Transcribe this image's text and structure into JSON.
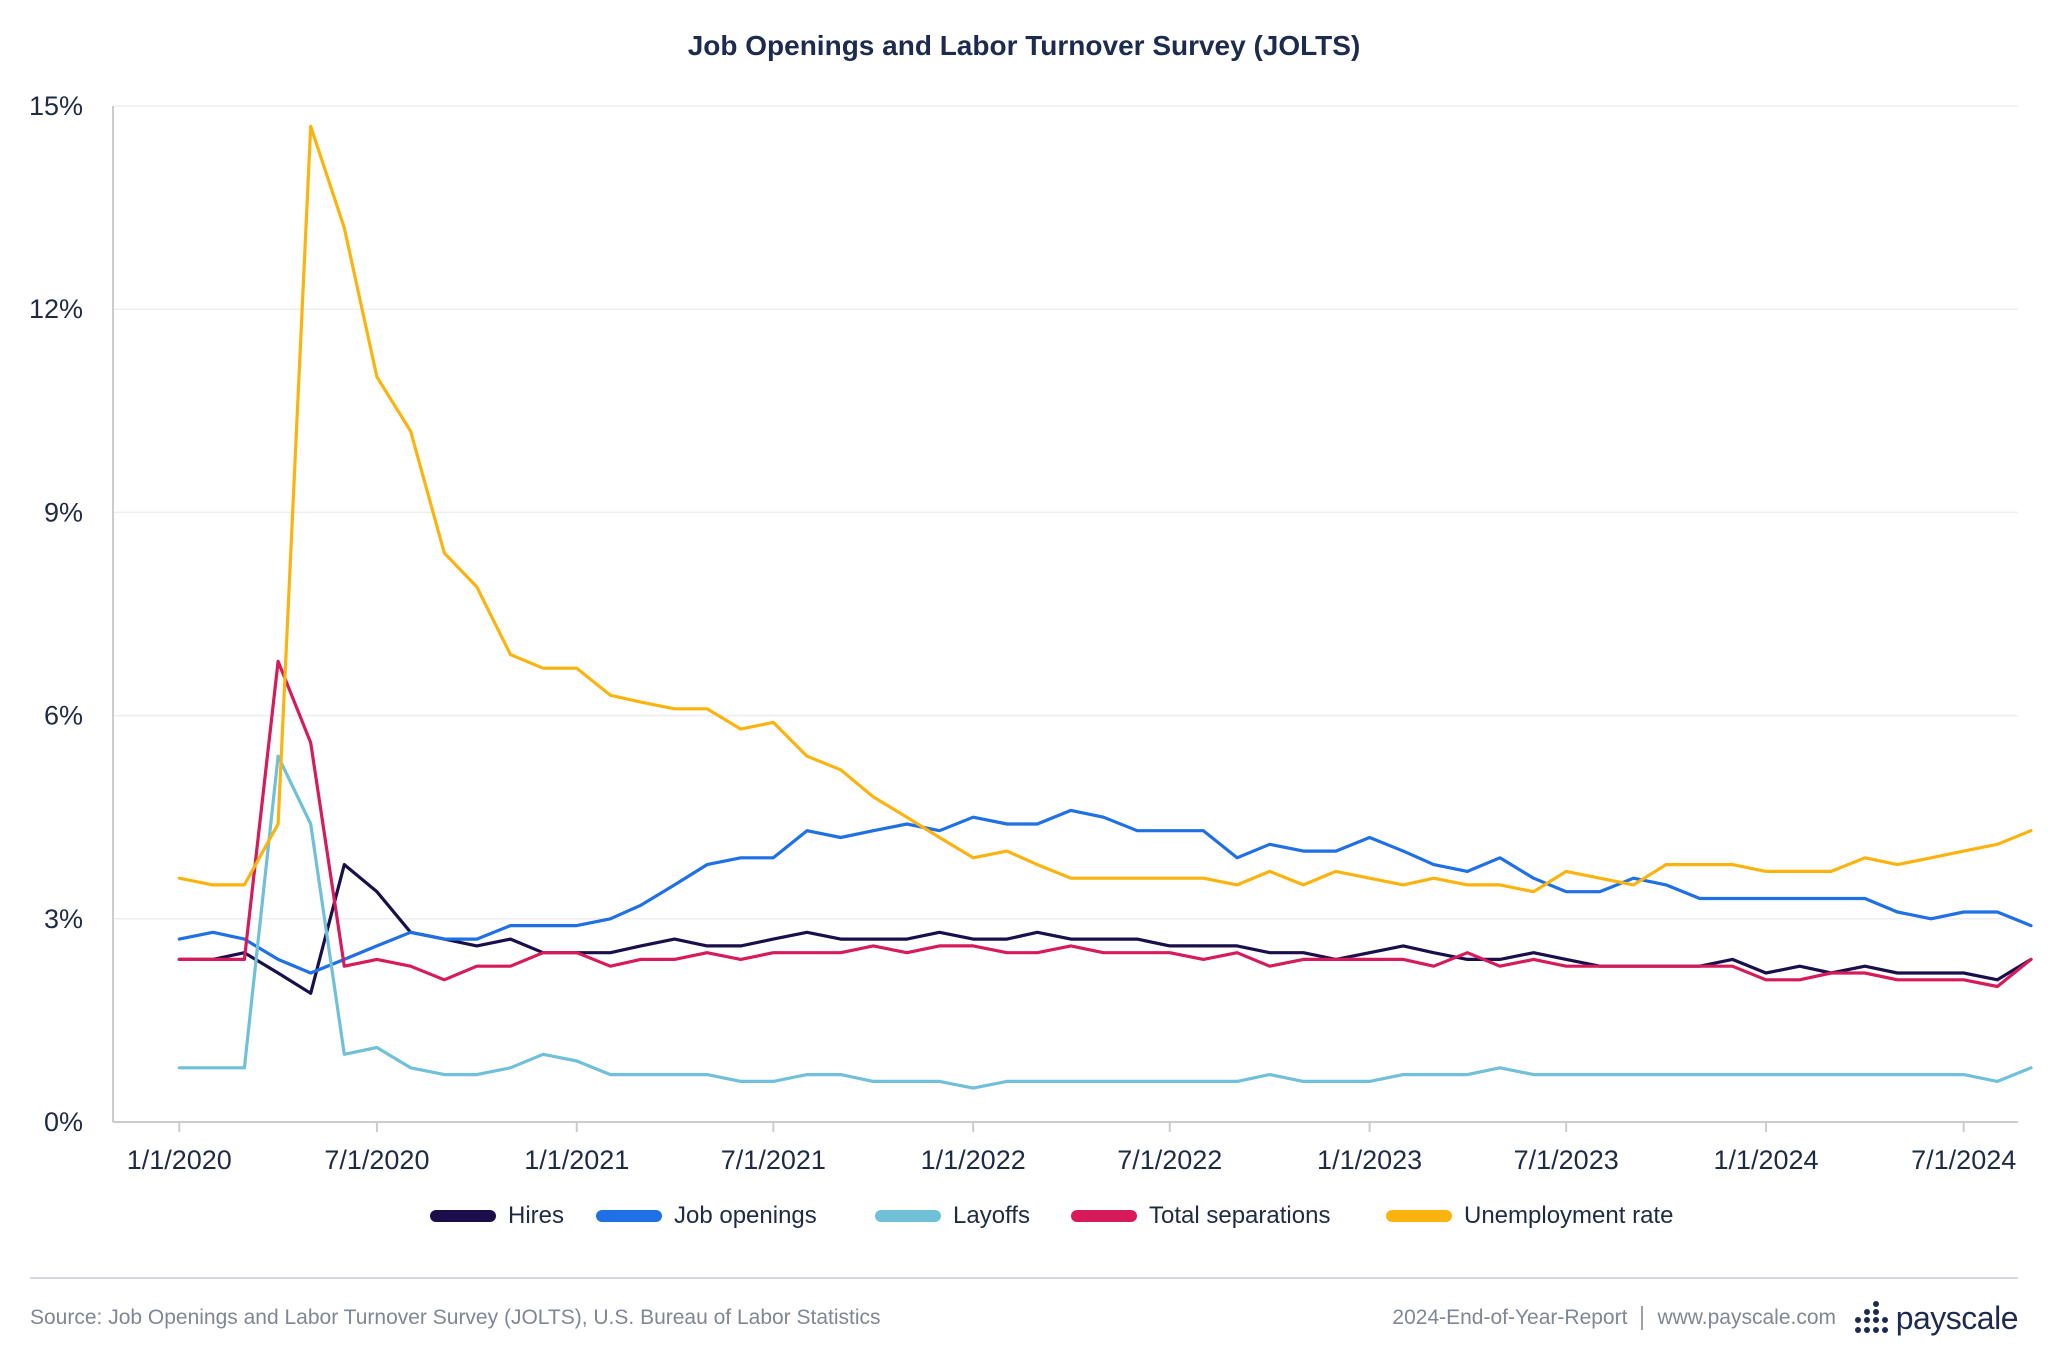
{
  "title": "Job Openings and Labor Turnover Survey (JOLTS)",
  "footer": {
    "source": "Source: Job Openings and Labor Turnover Survey (JOLTS), U.S. Bureau of Labor Statistics",
    "report": "2024-End-of-Year-Report",
    "site": "www.payscale.com",
    "brand": "payscale"
  },
  "colors": {
    "hires": "#1a0f4a",
    "job_openings": "#1f6fe5",
    "layoffs": "#6fc0d8",
    "total_separations": "#d61a5a",
    "unemployment_rate": "#fbb40f",
    "grid": "#eeeeee",
    "axis": "#cccccc"
  },
  "chart_data": {
    "type": "line",
    "title": "Job Openings and Labor Turnover Survey (JOLTS)",
    "xlabel": "",
    "ylabel": "",
    "x_start": "1/1/2020",
    "x_end": "8/1/2024",
    "x_ticks": [
      "1/1/2020",
      "7/1/2020",
      "1/1/2021",
      "7/1/2021",
      "1/1/2022",
      "7/1/2022",
      "1/1/2023",
      "7/1/2023",
      "1/1/2024",
      "7/1/2024"
    ],
    "x_min": "11/1/2019",
    "x_max": "8/20/2024",
    "ylim": [
      0,
      15
    ],
    "y_ticks": [
      0,
      3,
      6,
      9,
      12,
      15
    ],
    "y_tick_labels": [
      "0%",
      "3%",
      "6%",
      "9%",
      "12%",
      "15%"
    ],
    "grid": true,
    "legend_position": "bottom",
    "series": [
      {
        "name": "Hires",
        "key": "hires",
        "values": [
          2.4,
          2.4,
          2.5,
          2.2,
          1.9,
          3.8,
          3.4,
          2.8,
          2.7,
          2.6,
          2.7,
          2.5,
          2.5,
          2.5,
          2.6,
          2.7,
          2.6,
          2.6,
          2.7,
          2.8,
          2.7,
          2.7,
          2.7,
          2.8,
          2.7,
          2.7,
          2.8,
          2.7,
          2.7,
          2.7,
          2.6,
          2.6,
          2.6,
          2.5,
          2.5,
          2.4,
          2.5,
          2.6,
          2.5,
          2.4,
          2.4,
          2.5,
          2.4,
          2.3,
          2.3,
          2.3,
          2.3,
          2.4,
          2.2,
          2.3,
          2.2,
          2.3,
          2.2,
          2.2,
          2.2,
          2.1,
          2.4
        ]
      },
      {
        "name": "Job openings",
        "key": "job_openings",
        "values": [
          2.7,
          2.8,
          2.7,
          2.4,
          2.2,
          2.4,
          2.6,
          2.8,
          2.7,
          2.7,
          2.9,
          2.9,
          2.9,
          3.0,
          3.2,
          3.5,
          3.8,
          3.9,
          3.9,
          4.3,
          4.2,
          4.3,
          4.4,
          4.3,
          4.5,
          4.4,
          4.4,
          4.6,
          4.5,
          4.3,
          4.3,
          4.3,
          3.9,
          4.1,
          4.0,
          4.0,
          4.2,
          4.0,
          3.8,
          3.7,
          3.9,
          3.6,
          3.4,
          3.4,
          3.6,
          3.5,
          3.3,
          3.3,
          3.3,
          3.3,
          3.3,
          3.3,
          3.1,
          3.0,
          3.1,
          3.1,
          2.9
        ]
      },
      {
        "name": "Layoffs",
        "key": "layoffs",
        "values": [
          0.8,
          0.8,
          0.8,
          5.4,
          4.4,
          1.0,
          1.1,
          0.8,
          0.7,
          0.7,
          0.8,
          1.0,
          0.9,
          0.7,
          0.7,
          0.7,
          0.7,
          0.6,
          0.6,
          0.7,
          0.7,
          0.6,
          0.6,
          0.6,
          0.5,
          0.6,
          0.6,
          0.6,
          0.6,
          0.6,
          0.6,
          0.6,
          0.6,
          0.7,
          0.6,
          0.6,
          0.6,
          0.7,
          0.7,
          0.7,
          0.8,
          0.7,
          0.7,
          0.7,
          0.7,
          0.7,
          0.7,
          0.7,
          0.7,
          0.7,
          0.7,
          0.7,
          0.7,
          0.7,
          0.7,
          0.6,
          0.8
        ]
      },
      {
        "name": "Total separations",
        "key": "total_separations",
        "values": [
          2.4,
          2.4,
          2.4,
          6.8,
          5.6,
          2.3,
          2.4,
          2.3,
          2.1,
          2.3,
          2.3,
          2.5,
          2.5,
          2.3,
          2.4,
          2.4,
          2.5,
          2.4,
          2.5,
          2.5,
          2.5,
          2.6,
          2.5,
          2.6,
          2.6,
          2.5,
          2.5,
          2.6,
          2.5,
          2.5,
          2.5,
          2.4,
          2.5,
          2.3,
          2.4,
          2.4,
          2.4,
          2.4,
          2.3,
          2.5,
          2.3,
          2.4,
          2.3,
          2.3,
          2.3,
          2.3,
          2.3,
          2.3,
          2.1,
          2.1,
          2.2,
          2.2,
          2.1,
          2.1,
          2.1,
          2.0,
          2.4
        ]
      },
      {
        "name": "Unemployment rate",
        "key": "unemployment_rate",
        "values": [
          3.6,
          3.5,
          3.5,
          4.4,
          14.7,
          13.2,
          11.0,
          10.2,
          8.4,
          7.9,
          6.9,
          6.7,
          6.7,
          6.3,
          6.2,
          6.1,
          6.1,
          5.8,
          5.9,
          5.4,
          5.2,
          4.8,
          4.5,
          4.2,
          3.9,
          4.0,
          3.8,
          3.6,
          3.6,
          3.6,
          3.6,
          3.6,
          3.5,
          3.7,
          3.5,
          3.7,
          3.6,
          3.5,
          3.6,
          3.5,
          3.5,
          3.4,
          3.7,
          3.6,
          3.5,
          3.8,
          3.8,
          3.8,
          3.7,
          3.7,
          3.7,
          3.9,
          3.8,
          3.9,
          4.0,
          4.1,
          4.3
        ]
      }
    ]
  }
}
